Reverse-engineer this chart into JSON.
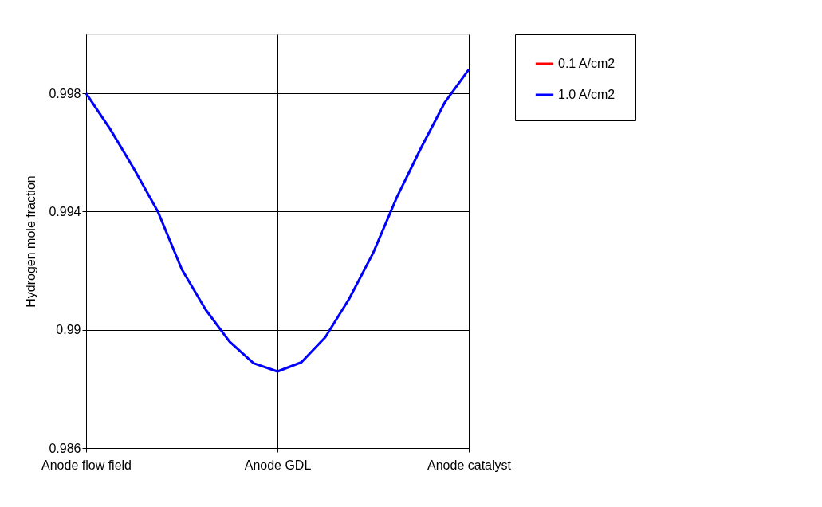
{
  "chart_data": {
    "type": "line",
    "ylabel": "Hydrogen mole fraction",
    "categories": [
      "Anode flow field",
      null,
      null,
      null,
      null,
      null,
      null,
      null,
      "Anode GDL",
      null,
      null,
      null,
      null,
      null,
      null,
      null,
      "Anode catalyst"
    ],
    "ylim": [
      0.986,
      1.0
    ],
    "yticks": [
      0.986,
      0.99,
      0.994,
      0.998
    ],
    "grid": true,
    "legend": "right",
    "line_style": "solid",
    "marker": "none",
    "series": [
      {
        "name": "0.1 A/cm2",
        "color": "#ff0000",
        "values": [
          null,
          null,
          null,
          null,
          null,
          null,
          null,
          null,
          null,
          null,
          null,
          null,
          null,
          null,
          null,
          null,
          null
        ]
      },
      {
        "name": "1.0 A/cm2",
        "color": "#0000ff",
        "values": [
          0.998,
          0.9968,
          0.99545,
          0.994,
          0.99205,
          0.99068,
          0.9896,
          0.98887,
          0.98859,
          0.9889,
          0.98975,
          0.99105,
          0.9926,
          0.9945,
          0.99615,
          0.9977,
          0.99881
        ]
      }
    ]
  }
}
